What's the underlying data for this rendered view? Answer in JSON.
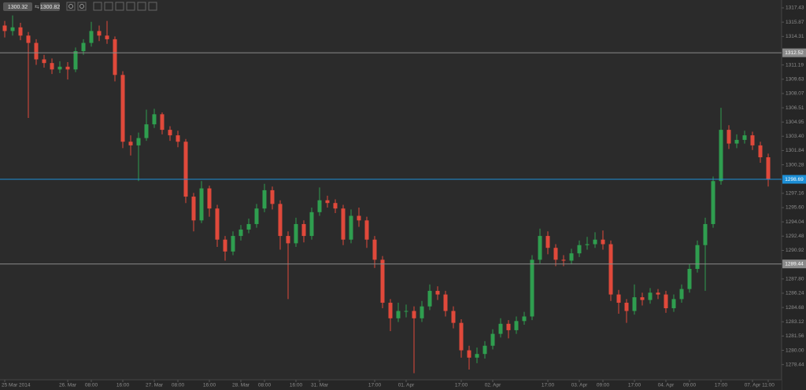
{
  "toolbar": {
    "bid": 1300.32,
    "ask": 1300.82
  },
  "chart_data": {
    "type": "candlestick",
    "categories": [
      "25 Mar 2014",
      null,
      null,
      null,
      null,
      null,
      null,
      null,
      "26. Mar",
      null,
      null,
      "08:00",
      null,
      null,
      null,
      "16:00",
      null,
      null,
      null,
      "27. Mar",
      null,
      null,
      "08:00",
      null,
      null,
      null,
      "16:00",
      null,
      null,
      null,
      "28. Mar",
      null,
      null,
      "08:00",
      null,
      null,
      null,
      "16:00",
      null,
      null,
      "31. Mar",
      null,
      null,
      null,
      null,
      null,
      null,
      "17:00",
      null,
      null,
      null,
      "01. Apr",
      null,
      null,
      null,
      null,
      null,
      null,
      "17:00",
      null,
      null,
      null,
      "02. Apr",
      null,
      null,
      null,
      null,
      null,
      null,
      "17:00",
      null,
      null,
      null,
      "03. Apr",
      null,
      null,
      "09:00",
      null,
      null,
      null,
      "17:00",
      null,
      null,
      null,
      "04. Apr",
      null,
      null,
      "09:00",
      null,
      null,
      null,
      "17:00",
      null,
      null,
      null,
      "07. Apr",
      null,
      "11:00"
    ],
    "open": [
      1315.5,
      1314.9,
      1315.3,
      1314.4,
      1313.6,
      1311.8,
      1311.4,
      1310.7,
      1311.0,
      1310.7,
      1312.7,
      1313.6,
      1314.9,
      1314.4,
      1314.0,
      1310.1,
      1302.8,
      1302.4,
      1303.2,
      1304.7,
      1305.8,
      1304.1,
      1303.5,
      1302.8,
      1296.8,
      1294.2,
      1297.7,
      1295.5,
      1292.1,
      1290.8,
      1292.5,
      1293.2,
      1293.8,
      1295.5,
      1297.5,
      1296.0,
      1292.5,
      1291.7,
      1293.8,
      1292.5,
      1295.1,
      1296.4,
      1296.1,
      1295.5,
      1292.1,
      1294.7,
      1294.2,
      1292.1,
      1289.9,
      1285.2,
      1283.5,
      1284.3,
      1284.3,
      1283.5,
      1284.8,
      1286.5,
      1286.1,
      1284.3,
      1283.0,
      1280.0,
      1279.2,
      1279.6,
      1280.5,
      1281.8,
      1282.9,
      1282.2,
      1283.2,
      1283.7,
      1289.9,
      1292.5,
      1291.2,
      1289.9,
      1289.8,
      1290.6,
      1291.5,
      1291.6,
      1292.1,
      1291.6,
      1286.1,
      1285.2,
      1284.3,
      1285.8,
      1285.5,
      1286.3,
      1286.1,
      1284.6,
      1285.6,
      1286.7,
      1288.9,
      1291.5,
      1293.8,
      1298.5,
      1304.1,
      1302.6,
      1303.0,
      1303.5,
      1302.4,
      1301.1
    ],
    "high": [
      1316.0,
      1316.6,
      1315.8,
      1314.8,
      1314.0,
      1312.3,
      1311.9,
      1311.6,
      1311.5,
      1313.1,
      1314.0,
      1315.9,
      1315.5,
      1316.0,
      1314.3,
      1310.5,
      1303.5,
      1303.8,
      1306.3,
      1306.4,
      1306.0,
      1304.5,
      1304.0,
      1303.1,
      1297.2,
      1298.5,
      1298.0,
      1295.9,
      1292.5,
      1293.0,
      1293.7,
      1294.4,
      1296.0,
      1298.2,
      1297.9,
      1296.4,
      1293.0,
      1294.5,
      1294.2,
      1295.6,
      1297.8,
      1296.9,
      1296.5,
      1295.9,
      1295.4,
      1295.6,
      1294.6,
      1292.5,
      1290.3,
      1285.6,
      1285.2,
      1285.0,
      1284.8,
      1285.4,
      1287.2,
      1287.0,
      1286.5,
      1284.8,
      1283.4,
      1280.5,
      1280.3,
      1281.0,
      1282.3,
      1283.5,
      1283.3,
      1283.7,
      1284.2,
      1290.4,
      1293.3,
      1293.0,
      1291.6,
      1290.4,
      1291.1,
      1292.0,
      1292.4,
      1292.9,
      1293.1,
      1292.0,
      1286.6,
      1285.6,
      1287.2,
      1286.3,
      1286.8,
      1286.7,
      1286.5,
      1286.1,
      1287.2,
      1289.4,
      1292.0,
      1294.5,
      1299.0,
      1306.5,
      1304.6,
      1303.6,
      1304.0,
      1303.9,
      1302.8,
      1301.5
    ],
    "low": [
      1314.2,
      1314.4,
      1313.9,
      1305.4,
      1311.2,
      1310.9,
      1310.2,
      1310.3,
      1309.6,
      1310.4,
      1312.3,
      1313.2,
      1313.8,
      1313.5,
      1309.4,
      1302.1,
      1301.3,
      1298.5,
      1302.9,
      1304.3,
      1303.6,
      1302.9,
      1302.2,
      1296.1,
      1293.0,
      1293.9,
      1294.6,
      1291.3,
      1289.8,
      1290.4,
      1292.0,
      1292.8,
      1293.4,
      1295.1,
      1295.4,
      1291.0,
      1285.6,
      1291.3,
      1291.8,
      1292.1,
      1294.7,
      1295.6,
      1295.0,
      1291.5,
      1291.7,
      1293.5,
      1291.2,
      1289.0,
      1284.6,
      1282.1,
      1283.1,
      1283.6,
      1277.5,
      1283.1,
      1284.4,
      1285.5,
      1283.7,
      1282.4,
      1279.2,
      1277.9,
      1278.6,
      1279.1,
      1280.1,
      1281.4,
      1281.3,
      1281.8,
      1282.8,
      1283.3,
      1289.5,
      1290.5,
      1289.2,
      1289.2,
      1289.4,
      1290.2,
      1291.0,
      1291.2,
      1291.0,
      1285.4,
      1284.0,
      1283.0,
      1283.9,
      1284.9,
      1285.1,
      1285.6,
      1284.1,
      1284.2,
      1285.2,
      1286.3,
      1288.5,
      1286.5,
      1293.4,
      1298.1,
      1302.0,
      1302.1,
      1302.6,
      1301.9,
      1300.5,
      1297.9
    ],
    "close": [
      1314.9,
      1315.3,
      1314.4,
      1313.6,
      1311.8,
      1311.4,
      1310.7,
      1311.0,
      1310.7,
      1312.7,
      1313.6,
      1314.9,
      1314.4,
      1314.0,
      1310.1,
      1302.8,
      1302.4,
      1303.2,
      1304.7,
      1305.8,
      1304.1,
      1303.5,
      1302.8,
      1296.8,
      1294.2,
      1297.7,
      1295.5,
      1292.1,
      1290.8,
      1292.5,
      1293.2,
      1293.8,
      1295.5,
      1297.5,
      1296.0,
      1292.5,
      1291.7,
      1293.8,
      1292.5,
      1295.1,
      1296.4,
      1296.1,
      1295.5,
      1292.1,
      1294.7,
      1294.2,
      1292.1,
      1289.9,
      1285.2,
      1283.5,
      1284.3,
      1284.3,
      1283.5,
      1284.8,
      1286.5,
      1286.1,
      1284.3,
      1283.0,
      1280.0,
      1279.2,
      1279.6,
      1280.5,
      1281.8,
      1282.9,
      1282.2,
      1283.2,
      1283.7,
      1289.9,
      1292.5,
      1291.2,
      1289.9,
      1289.8,
      1290.6,
      1291.5,
      1291.6,
      1292.1,
      1291.6,
      1286.1,
      1285.2,
      1284.3,
      1285.8,
      1285.5,
      1286.3,
      1286.1,
      1284.6,
      1285.6,
      1286.7,
      1288.9,
      1291.5,
      1293.8,
      1298.5,
      1304.1,
      1302.6,
      1303.0,
      1303.5,
      1302.4,
      1301.1,
      1298.7
    ],
    "up_color": "#2f9e4f",
    "down_color": "#e0493b",
    "ylim": [
      1276.78,
      1318.29
    ],
    "yticks": [
      1317.43,
      1315.87,
      1314.31,
      1311.19,
      1309.63,
      1308.07,
      1306.51,
      1304.95,
      {
        "value": 1303.4,
        "label": "1303.40"
      },
      1301.84,
      1300.28,
      1297.16,
      {
        "value": 1295.6,
        "label": "1295.60"
      },
      1294.04,
      1292.48,
      1290.92,
      {
        "value": 1287.8,
        "label": "1287.80"
      },
      1286.24,
      1284.68,
      1283.12,
      1281.56,
      {
        "value": 1280,
        "label": "1280.00"
      },
      1278.44
    ],
    "levels": [
      {
        "value": 1312.52,
        "color": "#8a8a8a"
      },
      {
        "value": 1298.69,
        "color": "#1d8fd6"
      },
      {
        "value": 1289.44,
        "color": "#8a8a8a"
      }
    ]
  }
}
